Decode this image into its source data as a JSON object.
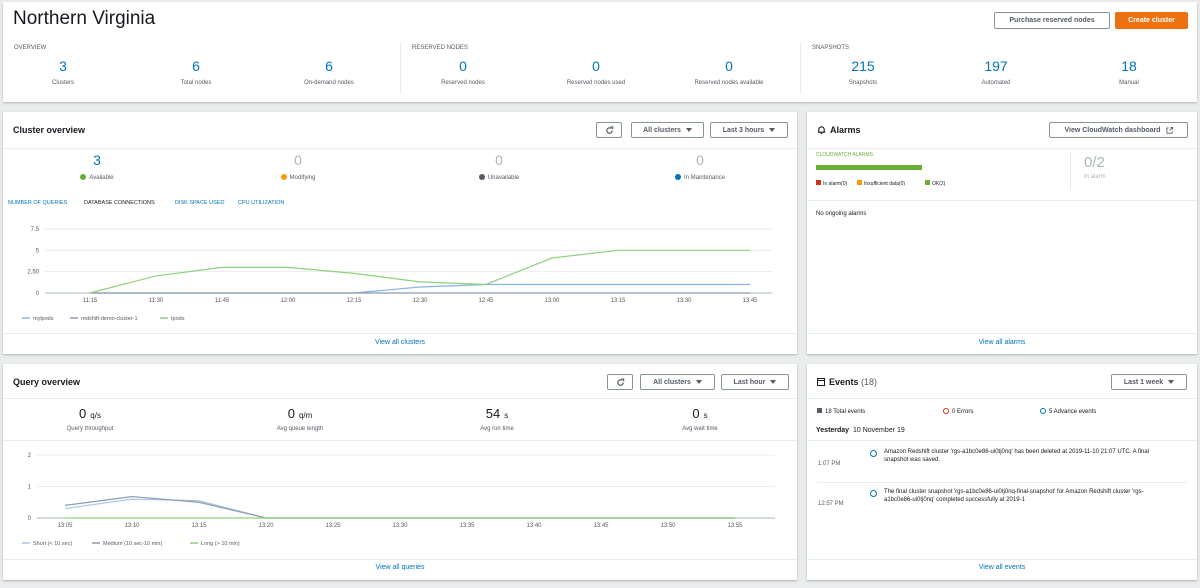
{
  "header": {
    "title": "Northern Virginia",
    "buttons": [
      "Purchase reserved nodes",
      "Create cluster"
    ]
  },
  "summary": {
    "sections": [
      {
        "heading": "OVERVIEW",
        "metrics": [
          {
            "value": "3",
            "label": "Clusters"
          },
          {
            "value": "6",
            "label": "Total nodes"
          },
          {
            "value": "6",
            "label": "On-demand nodes"
          }
        ]
      },
      {
        "heading": "RESERVED NODES",
        "metrics": [
          {
            "value": "0",
            "label": "Reserved nodes"
          },
          {
            "value": "0",
            "label": "Reserved nodes used"
          },
          {
            "value": "0",
            "label": "Reserved nodes available"
          }
        ]
      },
      {
        "heading": "SNAPSHOTS",
        "metrics": [
          {
            "value": "215",
            "label": "Snapshots"
          },
          {
            "value": "197",
            "label": "Automated"
          },
          {
            "value": "18",
            "label": "Manual"
          }
        ]
      }
    ]
  },
  "cluster_overview": {
    "title": "Cluster overview",
    "filters": [
      "All clusters",
      "Last 3 hours"
    ],
    "status": [
      {
        "value": "3",
        "label": "Available"
      },
      {
        "value": "0",
        "label": "Modifying"
      },
      {
        "value": "0",
        "label": "Unavailable"
      },
      {
        "value": "0",
        "label": "In Maintenance"
      }
    ],
    "tabs": [
      "NUMBER OF QUERIES",
      "DATABASE CONNECTIONS",
      "DISK SPACE USED",
      "CPU UTILIZATION"
    ],
    "link": "View all clusters"
  },
  "alarms": {
    "title": "Alarms",
    "button": "View CloudWatch dashboard",
    "heading": "CLOUDWATCH ALARMS",
    "states": [
      {
        "label": "In alarm(0)",
        "value": 0,
        "color": "#d13212"
      },
      {
        "label": "Insufficient data(0)",
        "value": 0,
        "color": "#ff9900"
      },
      {
        "label": "OK(2)",
        "value": 2,
        "color": "#6aaf35"
      }
    ],
    "ratio": "0/2",
    "ratio_label": "In alarm",
    "empty": "No ongoing alarms",
    "link": "View all alarms"
  },
  "query_overview": {
    "title": "Query overview",
    "filters": [
      "All clusters",
      "Last hour"
    ],
    "metrics": [
      {
        "value": "0",
        "unit": "q/s",
        "label": "Query throughput"
      },
      {
        "value": "0",
        "unit": "q/m",
        "label": "Avg queue length"
      },
      {
        "value": "54",
        "unit": "s",
        "label": "Avg run time"
      },
      {
        "value": "0",
        "unit": "s",
        "label": "Avg wait time"
      }
    ],
    "link": "View all queries"
  },
  "events": {
    "title": "Events",
    "count": "(18)",
    "filter": "Last 1 week",
    "totals": [
      "18 Total events",
      "0 Errors",
      "5 Advance events"
    ],
    "day": "Yesterday",
    "date": "10 November 19",
    "items": [
      {
        "time": "1:07 PM",
        "text": "Amazon Redshift cluster 'rgs-a1bc0e86-ui0tj0nq' has been deleted at 2019-11-10 21:07 UTC. A final snapshot was saved."
      },
      {
        "time": "12:57 PM",
        "text": "The final cluster snapshot 'rgs-a1bc0e86-ui0tj0nq-final-snapshot' for Amazon Redshift cluster 'rgs-a1bc0e86-ui0tj0nq' completed successfully at 2019-1"
      }
    ],
    "link": "View all events"
  },
  "chart_data": [
    {
      "type": "line",
      "categories": [
        "11:15",
        "11:30",
        "11:45",
        "12:00",
        "12:15",
        "12:30",
        "12:45",
        "13:00",
        "13:15",
        "13:30",
        "13:45"
      ],
      "ylim": [
        0,
        7.5
      ],
      "yticks": [
        0,
        {
          "value": 2.5,
          "label": "2.50"
        },
        5,
        7.5
      ],
      "grid": true,
      "series": [
        {
          "name": "mylpods",
          "color": "#88b4e0",
          "values": [
            0,
            0,
            0,
            0,
            0,
            0.7,
            1,
            1,
            1,
            1,
            1
          ]
        },
        {
          "name": "redshift-demo-cluster-1",
          "color": "#8c9aab",
          "values": [
            0,
            0,
            0,
            0,
            0,
            0,
            0,
            0,
            0,
            0,
            0
          ]
        },
        {
          "name": "tpods",
          "color": "#8fd07a",
          "values": [
            0,
            2,
            3,
            3,
            2.3,
            1.3,
            1,
            4.1,
            5,
            5,
            5
          ]
        }
      ]
    },
    {
      "type": "line",
      "categories": [
        "13:05",
        "13:10",
        "13:15",
        "13:20",
        "13:25",
        "13:30",
        "13:35",
        "13:40",
        "13:45",
        "13:50",
        "13:55"
      ],
      "ylim": [
        0,
        2
      ],
      "yticks": [
        0,
        1,
        2
      ],
      "grid": true,
      "series": [
        {
          "name": "Short (< 10 sec)",
          "color": "#a8c6e6",
          "values": [
            0.3,
            0.6,
            0.55,
            0,
            0,
            0,
            0,
            0,
            0,
            0,
            0
          ]
        },
        {
          "name": "Medium (10 sec-10 min)",
          "color": "#8a9bb0",
          "values": [
            0.4,
            0.68,
            0.5,
            0,
            0,
            0,
            0,
            0,
            0,
            0,
            0
          ]
        },
        {
          "name": "Long (> 10 min)",
          "color": "#8fd07a",
          "values": [
            0,
            0,
            0,
            0,
            0,
            0,
            0,
            0,
            0,
            0,
            0
          ]
        }
      ]
    }
  ]
}
